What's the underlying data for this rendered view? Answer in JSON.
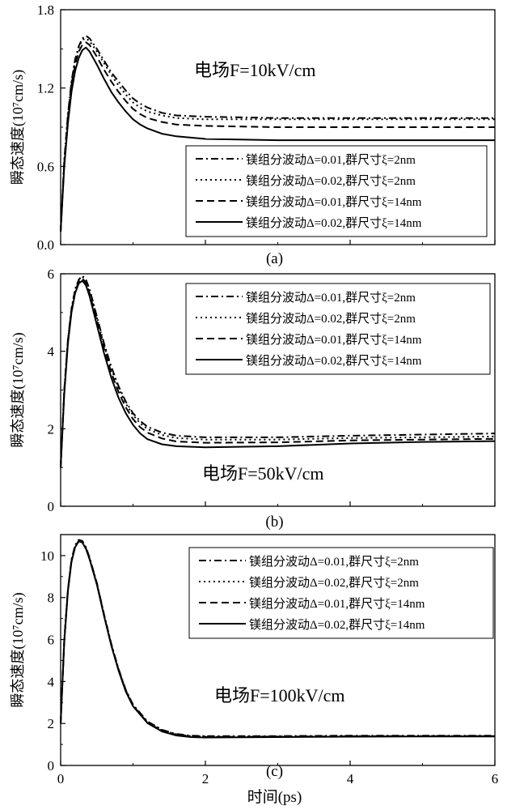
{
  "chart_data": [
    {
      "type": "line",
      "panel_label": "(a)",
      "annotation": "电场F=10kV/cm",
      "ylabel": "瞬态速度(10⁷cm/s)",
      "xlabel": "",
      "xlim": [
        0,
        6
      ],
      "ylim": [
        0,
        1.8
      ],
      "yticks": [
        "0.0",
        "0.6",
        "1.2",
        "1.8"
      ],
      "grid": false,
      "legend_position": "bottom-right",
      "series": [
        {
          "name": "镁组分波动Δ=0.01,群尺寸ξ=2nm",
          "dash": "dashdot",
          "x": [
            0,
            0.05,
            0.1,
            0.15,
            0.2,
            0.25,
            0.3,
            0.35,
            0.4,
            0.5,
            0.6,
            0.7,
            0.8,
            0.9,
            1.0,
            1.1,
            1.2,
            1.4,
            1.6,
            2.0,
            3.0,
            4.0,
            5.0,
            6.0
          ],
          "y": [
            0.1,
            0.65,
            1.0,
            1.25,
            1.42,
            1.52,
            1.58,
            1.6,
            1.58,
            1.5,
            1.41,
            1.32,
            1.25,
            1.18,
            1.12,
            1.08,
            1.05,
            1.01,
            0.99,
            0.98,
            0.97,
            0.97,
            0.97,
            0.97
          ]
        },
        {
          "name": "镁组分波动Δ=0.02,群尺寸ξ=2nm",
          "dash": "dotted",
          "x": [
            0,
            0.05,
            0.1,
            0.15,
            0.2,
            0.25,
            0.3,
            0.35,
            0.4,
            0.5,
            0.6,
            0.7,
            0.8,
            0.9,
            1.0,
            1.1,
            1.2,
            1.4,
            1.6,
            2.0,
            3.0,
            4.0,
            5.0,
            6.0
          ],
          "y": [
            0.1,
            0.64,
            0.99,
            1.24,
            1.41,
            1.51,
            1.57,
            1.58,
            1.56,
            1.48,
            1.39,
            1.3,
            1.22,
            1.15,
            1.09,
            1.05,
            1.02,
            0.99,
            0.97,
            0.96,
            0.96,
            0.96,
            0.96,
            0.96
          ]
        },
        {
          "name": "镁组分波动Δ=0.01,群尺寸ξ=14nm",
          "dash": "dashed",
          "x": [
            0,
            0.05,
            0.1,
            0.15,
            0.2,
            0.25,
            0.3,
            0.35,
            0.4,
            0.5,
            0.6,
            0.7,
            0.8,
            0.9,
            1.0,
            1.1,
            1.2,
            1.4,
            1.6,
            2.0,
            3.0,
            4.0,
            5.0,
            6.0
          ],
          "y": [
            0.1,
            0.63,
            0.97,
            1.22,
            1.38,
            1.48,
            1.53,
            1.55,
            1.53,
            1.44,
            1.34,
            1.25,
            1.17,
            1.1,
            1.04,
            1.0,
            0.97,
            0.94,
            0.92,
            0.91,
            0.9,
            0.9,
            0.9,
            0.9
          ]
        },
        {
          "name": "镁组分波动Δ=0.02,群尺寸ξ=14nm",
          "dash": "solid",
          "x": [
            0,
            0.05,
            0.1,
            0.15,
            0.2,
            0.25,
            0.3,
            0.35,
            0.4,
            0.5,
            0.6,
            0.7,
            0.8,
            0.9,
            1.0,
            1.1,
            1.2,
            1.4,
            1.6,
            2.0,
            3.0,
            4.0,
            5.0,
            6.0
          ],
          "y": [
            0.1,
            0.6,
            0.93,
            1.17,
            1.33,
            1.43,
            1.49,
            1.51,
            1.48,
            1.38,
            1.27,
            1.17,
            1.09,
            1.02,
            0.96,
            0.92,
            0.89,
            0.85,
            0.83,
            0.81,
            0.8,
            0.8,
            0.8,
            0.8
          ]
        }
      ]
    },
    {
      "type": "line",
      "panel_label": "(b)",
      "annotation": "电场F=50kV/cm",
      "ylabel": "瞬态速度(10⁷cm/s)",
      "xlabel": "",
      "xlim": [
        0,
        6
      ],
      "ylim": [
        0,
        6
      ],
      "yticks": [
        "0",
        "2",
        "4",
        "6"
      ],
      "grid": false,
      "legend_position": "top-right",
      "series": [
        {
          "name": "镁组分波动Δ=0.01,群尺寸ξ=2nm",
          "dash": "dashdot",
          "x": [
            0,
            0.05,
            0.1,
            0.15,
            0.2,
            0.25,
            0.3,
            0.35,
            0.4,
            0.5,
            0.6,
            0.7,
            0.8,
            0.9,
            1.0,
            1.1,
            1.2,
            1.4,
            1.6,
            2.0,
            3.0,
            4.0,
            5.0,
            6.0
          ],
          "y": [
            1.0,
            3.0,
            4.3,
            5.1,
            5.6,
            5.85,
            5.95,
            5.85,
            5.6,
            4.9,
            4.2,
            3.6,
            3.1,
            2.7,
            2.4,
            2.2,
            2.05,
            1.9,
            1.82,
            1.78,
            1.78,
            1.82,
            1.85,
            1.88
          ]
        },
        {
          "name": "镁组分波动Δ=0.02,群尺寸ξ=2nm",
          "dash": "dotted",
          "x": [
            0,
            0.05,
            0.1,
            0.15,
            0.2,
            0.25,
            0.3,
            0.35,
            0.4,
            0.5,
            0.6,
            0.7,
            0.8,
            0.9,
            1.0,
            1.1,
            1.2,
            1.4,
            1.6,
            2.0,
            3.0,
            4.0,
            5.0,
            6.0
          ],
          "y": [
            1.0,
            3.0,
            4.3,
            5.1,
            5.6,
            5.85,
            5.93,
            5.82,
            5.57,
            4.86,
            4.15,
            3.55,
            3.05,
            2.65,
            2.35,
            2.14,
            1.99,
            1.84,
            1.76,
            1.72,
            1.72,
            1.76,
            1.78,
            1.8
          ]
        },
        {
          "name": "镁组分波动Δ=0.01,群尺寸ξ=14nm",
          "dash": "dashed",
          "x": [
            0,
            0.05,
            0.1,
            0.15,
            0.2,
            0.25,
            0.3,
            0.35,
            0.4,
            0.5,
            0.6,
            0.7,
            0.8,
            0.9,
            1.0,
            1.1,
            1.2,
            1.4,
            1.6,
            2.0,
            3.0,
            4.0,
            5.0,
            6.0
          ],
          "y": [
            1.0,
            3.0,
            4.25,
            5.05,
            5.55,
            5.8,
            5.88,
            5.77,
            5.5,
            4.78,
            4.06,
            3.45,
            2.95,
            2.55,
            2.25,
            2.04,
            1.9,
            1.75,
            1.67,
            1.64,
            1.65,
            1.7,
            1.72,
            1.74
          ]
        },
        {
          "name": "镁组分波动Δ=0.02,群尺寸ξ=14nm",
          "dash": "solid",
          "x": [
            0,
            0.05,
            0.1,
            0.15,
            0.2,
            0.25,
            0.3,
            0.35,
            0.4,
            0.5,
            0.6,
            0.7,
            0.8,
            0.9,
            1.0,
            1.1,
            1.2,
            1.4,
            1.6,
            2.0,
            3.0,
            4.0,
            5.0,
            6.0
          ],
          "y": [
            1.0,
            2.9,
            4.2,
            5.0,
            5.5,
            5.75,
            5.82,
            5.7,
            5.42,
            4.68,
            3.95,
            3.32,
            2.8,
            2.4,
            2.1,
            1.88,
            1.73,
            1.6,
            1.55,
            1.52,
            1.55,
            1.62,
            1.66,
            1.68
          ]
        }
      ]
    },
    {
      "type": "line",
      "panel_label": "(c)",
      "annotation": "电场F=100kV/cm",
      "ylabel": "瞬态速度(10⁷cm/s)",
      "xlabel": "时间(ps)",
      "xlim": [
        0,
        6
      ],
      "ylim": [
        0,
        11
      ],
      "xticks": [
        "0",
        "2",
        "4",
        "6"
      ],
      "yticks": [
        "0",
        "2",
        "4",
        "6",
        "8",
        "10"
      ],
      "grid": false,
      "legend_position": "top-right",
      "series": [
        {
          "name": "镁组分波动Δ=0.01,群尺寸ξ=2nm",
          "dash": "dashdot",
          "x": [
            0,
            0.05,
            0.1,
            0.15,
            0.2,
            0.25,
            0.3,
            0.35,
            0.4,
            0.5,
            0.6,
            0.7,
            0.8,
            0.9,
            1.0,
            1.2,
            1.4,
            1.6,
            1.8,
            2.0,
            3.0,
            4.0,
            5.0,
            6.0
          ],
          "y": [
            2.0,
            6.0,
            8.4,
            9.8,
            10.5,
            10.75,
            10.7,
            10.4,
            9.9,
            8.7,
            7.2,
            5.8,
            4.6,
            3.6,
            2.9,
            2.1,
            1.7,
            1.5,
            1.42,
            1.4,
            1.4,
            1.42,
            1.42,
            1.42
          ]
        },
        {
          "name": "镁组分波动Δ=0.02,群尺寸ξ=2nm",
          "dash": "dotted",
          "x": [
            0,
            0.05,
            0.1,
            0.15,
            0.2,
            0.25,
            0.3,
            0.35,
            0.4,
            0.5,
            0.6,
            0.7,
            0.8,
            0.9,
            1.0,
            1.2,
            1.4,
            1.6,
            1.8,
            2.0,
            3.0,
            4.0,
            5.0,
            6.0
          ],
          "y": [
            2.0,
            6.0,
            8.4,
            9.8,
            10.5,
            10.73,
            10.68,
            10.38,
            9.88,
            8.68,
            7.18,
            5.78,
            4.58,
            3.58,
            2.88,
            2.08,
            1.68,
            1.48,
            1.4,
            1.38,
            1.38,
            1.4,
            1.4,
            1.4
          ]
        },
        {
          "name": "镁组分波动Δ=0.01,群尺寸ξ=14nm",
          "dash": "dashed",
          "x": [
            0,
            0.05,
            0.1,
            0.15,
            0.2,
            0.25,
            0.3,
            0.35,
            0.4,
            0.5,
            0.6,
            0.7,
            0.8,
            0.9,
            1.0,
            1.2,
            1.4,
            1.6,
            1.8,
            2.0,
            3.0,
            4.0,
            5.0,
            6.0
          ],
          "y": [
            2.0,
            5.95,
            8.35,
            9.75,
            10.45,
            10.7,
            10.65,
            10.35,
            9.85,
            8.65,
            7.15,
            5.75,
            4.55,
            3.55,
            2.85,
            2.05,
            1.65,
            1.46,
            1.38,
            1.36,
            1.37,
            1.39,
            1.4,
            1.4
          ]
        },
        {
          "name": "镁组分波动Δ=0.02,群尺寸ξ=14nm",
          "dash": "solid",
          "x": [
            0,
            0.05,
            0.1,
            0.15,
            0.2,
            0.25,
            0.3,
            0.35,
            0.4,
            0.5,
            0.6,
            0.7,
            0.8,
            0.9,
            1.0,
            1.2,
            1.4,
            1.6,
            1.8,
            2.0,
            3.0,
            4.0,
            5.0,
            6.0
          ],
          "y": [
            2.0,
            5.9,
            8.3,
            9.7,
            10.4,
            10.68,
            10.62,
            10.32,
            9.82,
            8.62,
            7.12,
            5.72,
            4.52,
            3.52,
            2.82,
            2.02,
            1.62,
            1.43,
            1.35,
            1.33,
            1.35,
            1.37,
            1.38,
            1.38
          ]
        }
      ]
    }
  ]
}
